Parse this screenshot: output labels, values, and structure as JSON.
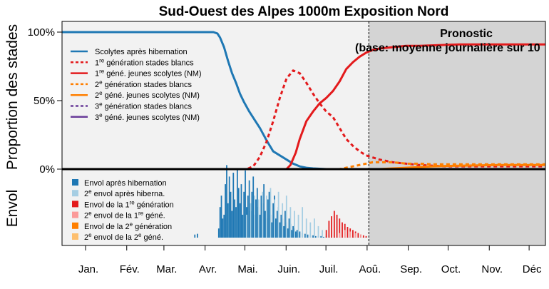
{
  "chart_data": [
    {
      "type": "line",
      "title": "Sud-Ouest des Alpes 1000m Exposition Nord",
      "ylabel": "Proportion des stades",
      "xlabel": "",
      "x_unit": "jour de l'année",
      "xlim": [
        1,
        365
      ],
      "ylim": [
        0,
        100
      ],
      "yticks": [
        "0%",
        "50%",
        "100%"
      ],
      "months": [
        "Jan.",
        "Fév.",
        "Mar.",
        "Avr.",
        "Mai.",
        "Juin.",
        "Juil.",
        "Aoû.",
        "Sep.",
        "Oct.",
        "Nov.",
        "Déc"
      ],
      "forecast": {
        "start_day": 232,
        "title": "Pronostic",
        "subtitle": "(base: moyenne journalière sur 10"
      },
      "legend": [
        {
          "label": "Scolytes après hibernation",
          "color": "#1f78b4",
          "dash": "solid"
        },
        {
          "label_pre": "1",
          "sup": "re",
          "label_post": " génération stades blancs",
          "color": "#e31a1c",
          "dash": "dashed"
        },
        {
          "label_pre": "1",
          "sup": "re",
          "label_post": " géné. jeunes scolytes (NM)",
          "color": "#e31a1c",
          "dash": "solid"
        },
        {
          "label_pre": "2",
          "sup": "e",
          "label_post": " génération stades blancs",
          "color": "#ff7f00",
          "dash": "dashed"
        },
        {
          "label_pre": "2",
          "sup": "e",
          "label_post": " géné. jeunes scolytes (NM)",
          "color": "#ff7f00",
          "dash": "solid"
        },
        {
          "label_pre": "3",
          "sup": "e",
          "label_post": " génération stades blancs",
          "color": "#6a3d9a",
          "dash": "dashed"
        },
        {
          "label_pre": "3",
          "sup": "e",
          "label_post": " géné. jeunes scolytes (NM)",
          "color": "#6a3d9a",
          "dash": "solid"
        }
      ],
      "series": [
        {
          "name": "Scolytes après hibernation",
          "color": "#1f78b4",
          "dash": "solid",
          "x": [
            1,
            115,
            118,
            120,
            123,
            126,
            129,
            132,
            135,
            138,
            142,
            146,
            150,
            155,
            160,
            165,
            170,
            175,
            180,
            185,
            190,
            200,
            365
          ],
          "values": [
            100,
            100,
            99,
            96,
            89,
            79,
            70,
            63,
            55,
            49,
            42,
            36,
            30,
            21,
            13,
            10,
            7,
            4,
            2,
            1,
            0.5,
            0,
            0
          ]
        },
        {
          "name": "1re génération stades blancs",
          "color": "#e31a1c",
          "dash": "dashed",
          "x": [
            1,
            140,
            145,
            150,
            155,
            160,
            165,
            170,
            175,
            180,
            185,
            190,
            195,
            200,
            205,
            210,
            215,
            220,
            225,
            230,
            240,
            250,
            260,
            270,
            290,
            365
          ],
          "values": [
            0,
            0,
            2,
            9,
            20,
            35,
            52,
            66,
            72,
            70,
            63,
            55,
            48,
            42,
            38,
            30,
            22,
            17,
            13,
            10,
            7,
            5,
            4,
            3,
            2,
            2
          ]
        },
        {
          "name": "1re géné. jeunes scolytes (NM)",
          "color": "#e31a1c",
          "dash": "solid",
          "x": [
            1,
            170,
            173,
            177,
            180,
            185,
            190,
            195,
            200,
            205,
            210,
            215,
            220,
            225,
            230,
            235,
            240,
            250,
            260,
            270,
            300,
            330,
            365
          ],
          "values": [
            0,
            0,
            3,
            12,
            22,
            35,
            42,
            48,
            52,
            57,
            64,
            73,
            78,
            82,
            85,
            87,
            88,
            89,
            90,
            90,
            91,
            91,
            91
          ]
        },
        {
          "name": "2e génération stades blancs",
          "color": "#ff7f00",
          "dash": "dashed",
          "x": [
            1,
            210,
            215,
            220,
            225,
            230,
            235,
            240,
            250,
            260,
            270,
            280,
            300,
            320,
            340,
            365
          ],
          "values": [
            0,
            0,
            1,
            2,
            3,
            4,
            5,
            5,
            5,
            4,
            4,
            3.5,
            3.5,
            3.5,
            3.5,
            3.5
          ]
        },
        {
          "name": "2e géné. jeunes scolytes (NM)",
          "color": "#ff7f00",
          "dash": "solid",
          "x": [
            1,
            240,
            250,
            260,
            270,
            280,
            300,
            330,
            365
          ],
          "values": [
            0,
            0,
            0.5,
            1,
            1.5,
            2,
            2.5,
            3,
            3
          ]
        },
        {
          "name": "3e génération stades blancs",
          "color": "#6a3d9a",
          "dash": "dashed",
          "x": [
            1,
            365
          ],
          "values": [
            0,
            0
          ]
        },
        {
          "name": "3e géné. jeunes scolytes (NM)",
          "color": "#6a3d9a",
          "dash": "solid",
          "x": [
            1,
            365
          ],
          "values": [
            0,
            0
          ]
        }
      ]
    },
    {
      "type": "bar",
      "ylabel": "Envol",
      "x_unit": "jour de l'année",
      "ylim": [
        0,
        100
      ],
      "legend": [
        {
          "label": "Envol après hibernation",
          "color": "#1f78b4"
        },
        {
          "label": "2e envol après hiberna.",
          "color": "#a6cee3"
        },
        {
          "label": "Envol de la 1re génération",
          "color": "#e31a1c"
        },
        {
          "label": "2e envol de la 1re géné.",
          "color": "#fb9a99"
        },
        {
          "label": "Envol de la 2e génération",
          "color": "#ff7f00"
        },
        {
          "label": "2e envol de la 2e géné.",
          "color": "#fdbf6f"
        }
      ],
      "legend_rich": [
        {
          "pre": "Envol après hibernation",
          "sup": "",
          "post": "",
          "color": "#1f78b4"
        },
        {
          "pre": "2",
          "sup": "e",
          "post": " envol après hiberna.",
          "color": "#a6cee3"
        },
        {
          "pre": "Envol de la 1",
          "sup": "re",
          "post": " génération",
          "color": "#e31a1c"
        },
        {
          "pre": "2",
          "sup": "e",
          "post": " envol de la 1",
          "sup2": "re",
          "post2": " géné.",
          "color": "#fb9a99"
        },
        {
          "pre": "Envol de la 2",
          "sup": "e",
          "post": " génération",
          "color": "#ff7f00"
        },
        {
          "pre": "2",
          "sup": "e",
          "post": " envol de la 2",
          "sup2": "e",
          "post2": " géné.",
          "color": "#fdbf6f"
        }
      ],
      "series": [
        {
          "name": "Envol après hibernation",
          "color": "#1f78b4",
          "x": [
            101,
            103,
            119,
            120,
            121,
            122,
            123,
            124,
            125,
            126,
            127,
            128,
            129,
            130,
            131,
            132,
            133,
            134,
            135,
            136,
            137,
            138,
            139,
            140,
            141,
            142,
            143,
            144,
            145,
            146,
            147,
            148,
            149,
            150,
            151,
            152,
            153,
            154,
            155,
            156,
            157,
            158,
            159,
            160,
            161,
            162,
            163,
            164,
            165,
            166,
            167,
            168,
            169,
            170,
            171,
            172,
            173,
            174,
            175,
            176,
            177,
            178,
            179,
            180,
            182,
            184,
            186,
            188,
            190,
            192,
            194,
            196,
            198,
            200,
            202,
            204,
            206,
            208,
            210,
            212,
            214,
            216,
            218,
            220,
            222,
            224,
            226,
            228,
            230
          ],
          "values": [
            4,
            5,
            12,
            40,
            55,
            25,
            30,
            70,
            95,
            45,
            80,
            60,
            35,
            85,
            50,
            40,
            90,
            65,
            45,
            70,
            30,
            60,
            88,
            40,
            55,
            75,
            35,
            60,
            80,
            30,
            50,
            65,
            40,
            30,
            55,
            45,
            70,
            35,
            25,
            50,
            60,
            30,
            20,
            45,
            55,
            25,
            35,
            40,
            20,
            30,
            25,
            15,
            35,
            20,
            12,
            25,
            18,
            10,
            15,
            12,
            8,
            10,
            6,
            8,
            6,
            5,
            4,
            3,
            3,
            2,
            2,
            2,
            1,
            2,
            1,
            1,
            1,
            1,
            1,
            1,
            1,
            1,
            1,
            1,
            1,
            1,
            1,
            1,
            1
          ]
        },
        {
          "name": "2e envol après hiberna.",
          "color": "#a6cee3",
          "x": [
            140,
            143,
            146,
            149,
            152,
            155,
            158,
            161,
            164,
            167,
            170,
            173,
            176,
            179,
            182,
            185,
            188,
            191,
            194,
            197,
            200
          ],
          "values": [
            30,
            45,
            55,
            50,
            60,
            55,
            65,
            50,
            60,
            45,
            55,
            40,
            35,
            30,
            40,
            25,
            20,
            25,
            15,
            10,
            5
          ]
        },
        {
          "name": "Envol de la 1re génération",
          "color": "#e31a1c",
          "x": [
            200,
            202,
            204,
            206,
            208,
            210,
            212,
            214,
            216,
            218,
            220,
            222,
            224,
            226,
            228,
            230
          ],
          "values": [
            10,
            22,
            28,
            35,
            30,
            25,
            20,
            18,
            14,
            12,
            10,
            8,
            6,
            4,
            3,
            2
          ]
        },
        {
          "name": "2e envol de la 1re géné.",
          "color": "#fb9a99",
          "x": [
            210,
            214,
            218,
            222,
            226
          ],
          "values": [
            6,
            10,
            8,
            6,
            4
          ]
        },
        {
          "name": "Envol de la 2e génération",
          "color": "#ff7f00",
          "x": [],
          "values": []
        },
        {
          "name": "2e envol de la 2e géné.",
          "color": "#fdbf6f",
          "x": [],
          "values": []
        }
      ]
    }
  ]
}
